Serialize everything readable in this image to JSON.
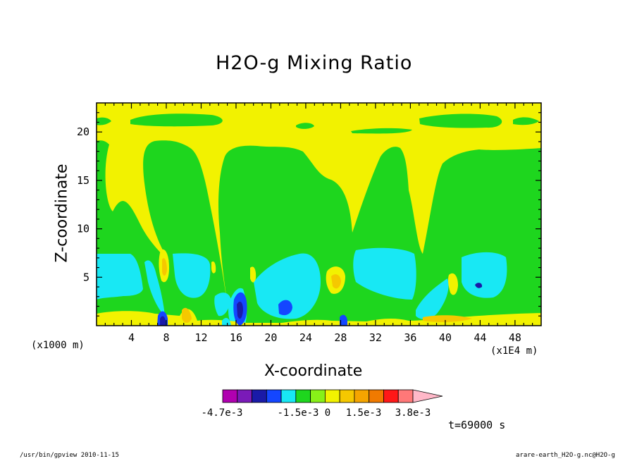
{
  "title": "H2O-g Mixing Ratio",
  "xlabel": "X-coordinate",
  "ylabel": "Z-coordinate",
  "x_unit_note": "(x1000 m)",
  "x_scale_note": "(x1E4 m)",
  "time_label": "t=69000 s",
  "footer_left": "/usr/bin/gpview  2010-11-15",
  "footer_right": "arare-earth_H2O-g.nc@H2O-g",
  "chart_data": {
    "type": "heatmap",
    "title": "H2O-g Mixing Ratio",
    "xlabel": "X-coordinate",
    "ylabel": "Z-coordinate",
    "xlim": [
      0,
      51
    ],
    "ylim": [
      0,
      23
    ],
    "xticks": [
      4,
      8,
      12,
      16,
      20,
      24,
      28,
      32,
      36,
      40,
      44,
      48
    ],
    "yticks": [
      5,
      10,
      15,
      20
    ],
    "colorbar": {
      "colors": [
        "#b000b0",
        "#7a1ab8",
        "#1a1aa8",
        "#1446ff",
        "#18e8f4",
        "#1ed61e",
        "#88f018",
        "#f2f200",
        "#f5c800",
        "#f5a500",
        "#f07a00",
        "#ff1818",
        "#ff7878",
        "#ffb8c8"
      ],
      "labels": [
        "-4.7e-3",
        "-1.5e-3",
        "0",
        "1.5e-3",
        "3.8e-3"
      ]
    }
  }
}
